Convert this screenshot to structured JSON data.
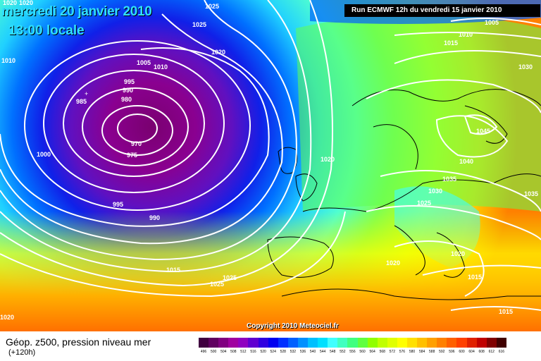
{
  "header": {
    "date_line": "mercredi 20 janvier 2010",
    "time_line": "13:00 locale",
    "run_info": "Run ECMWF 12h du vendredi 15 janvier 2010"
  },
  "copyright": "Copyright 2010 Meteociel.fr",
  "legend": {
    "title": "Géop. z500, pression niveau mer",
    "subtitle": "(+120h)",
    "scale_values": [
      "496",
      "500",
      "504",
      "508",
      "512",
      "516",
      "520",
      "524",
      "528",
      "532",
      "536",
      "540",
      "544",
      "548",
      "552",
      "556",
      "560",
      "564",
      "568",
      "572",
      "576",
      "580",
      "584",
      "588",
      "592",
      "596",
      "600",
      "604",
      "608",
      "612",
      "616"
    ],
    "scale_colors": [
      "#400040",
      "#600060",
      "#800080",
      "#a000a0",
      "#9000c0",
      "#6000d0",
      "#3000e0",
      "#0000f0",
      "#0030ff",
      "#0060ff",
      "#0090ff",
      "#00c0ff",
      "#00e0ff",
      "#40ffff",
      "#40ffc0",
      "#40ff80",
      "#60ff40",
      "#90ff00",
      "#c0ff00",
      "#e0ff00",
      "#ffff00",
      "#ffe000",
      "#ffc000",
      "#ffa000",
      "#ff8000",
      "#ff6000",
      "#ff4000",
      "#e02000",
      "#c00000",
      "#800000",
      "#400000"
    ]
  },
  "isobar_labels": [
    {
      "text": "1025",
      "id": "l1"
    },
    {
      "text": "1025",
      "id": "l2"
    },
    {
      "text": "1020",
      "id": "l3"
    },
    {
      "text": "1010",
      "id": "l4"
    },
    {
      "text": "1005",
      "id": "l5"
    },
    {
      "text": "1010",
      "id": "l6"
    },
    {
      "text": "995",
      "id": "l7"
    },
    {
      "text": "990",
      "id": "l8"
    },
    {
      "text": "980",
      "id": "l9"
    },
    {
      "text": "985",
      "id": "l10"
    },
    {
      "text": "970",
      "id": "l11"
    },
    {
      "text": "975",
      "id": "l12"
    },
    {
      "text": "1000",
      "id": "l13"
    },
    {
      "text": "995",
      "id": "l14"
    },
    {
      "text": "990",
      "id": "l15"
    },
    {
      "text": "1015",
      "id": "l16"
    },
    {
      "text": "1025",
      "id": "l17"
    },
    {
      "text": "1025",
      "id": "l18"
    },
    {
      "text": "1020",
      "id": "l19"
    },
    {
      "text": "1020",
      "id": "l20"
    },
    {
      "text": "1005",
      "id": "l21"
    },
    {
      "text": "1010",
      "id": "l22"
    },
    {
      "text": "1015",
      "id": "l23"
    },
    {
      "text": "1030",
      "id": "l24"
    },
    {
      "text": "1045",
      "id": "l25"
    },
    {
      "text": "1040",
      "id": "l26"
    },
    {
      "text": "1035",
      "id": "l27"
    },
    {
      "text": "1030",
      "id": "l28"
    },
    {
      "text": "1025",
      "id": "l29"
    },
    {
      "text": "1035",
      "id": "l30"
    },
    {
      "text": "1020",
      "id": "l31"
    },
    {
      "text": "1020",
      "id": "l32"
    },
    {
      "text": "1015",
      "id": "l33"
    },
    {
      "text": "1015",
      "id": "l34"
    },
    {
      "text": "1020",
      "id": "l35"
    },
    {
      "text": "1020",
      "id": "l36"
    }
  ]
}
